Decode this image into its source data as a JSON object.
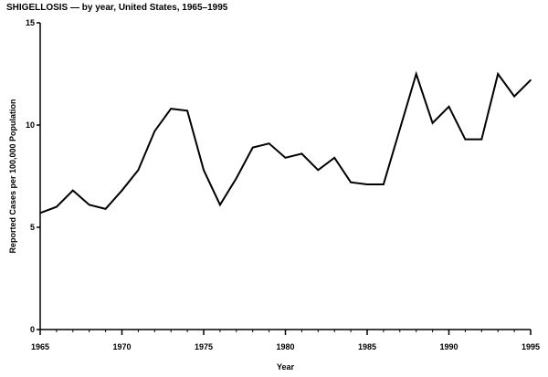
{
  "chart_data": {
    "type": "line",
    "title": "SHIGELLOSIS — by year, United States, 1965–1995",
    "xlabel": "Year",
    "ylabel": "Reported Cases per 100,000 Population",
    "xlim": [
      1965,
      1995
    ],
    "ylim": [
      0,
      15
    ],
    "x_ticks": [
      1965,
      1970,
      1975,
      1980,
      1985,
      1990,
      1995
    ],
    "y_ticks": [
      0,
      5,
      10,
      15
    ],
    "grid": false,
    "legend": "none",
    "line_color": "#000000",
    "series": [
      {
        "x": [
          1965,
          1966,
          1967,
          1968,
          1969,
          1970,
          1971,
          1972,
          1973,
          1974,
          1975,
          1976,
          1977,
          1978,
          1979,
          1980,
          1981,
          1982,
          1983,
          1984,
          1985,
          1986,
          1987,
          1988,
          1989,
          1990,
          1991,
          1992,
          1993,
          1994,
          1995
        ],
        "values": [
          5.7,
          6.0,
          6.8,
          6.1,
          5.9,
          6.8,
          7.8,
          9.7,
          10.8,
          10.7,
          7.8,
          6.1,
          7.4,
          8.9,
          9.1,
          8.4,
          8.6,
          7.8,
          8.4,
          7.2,
          7.1,
          7.1,
          9.8,
          12.5,
          10.1,
          10.9,
          9.3,
          9.3,
          12.5,
          11.4,
          12.2
        ]
      }
    ]
  }
}
